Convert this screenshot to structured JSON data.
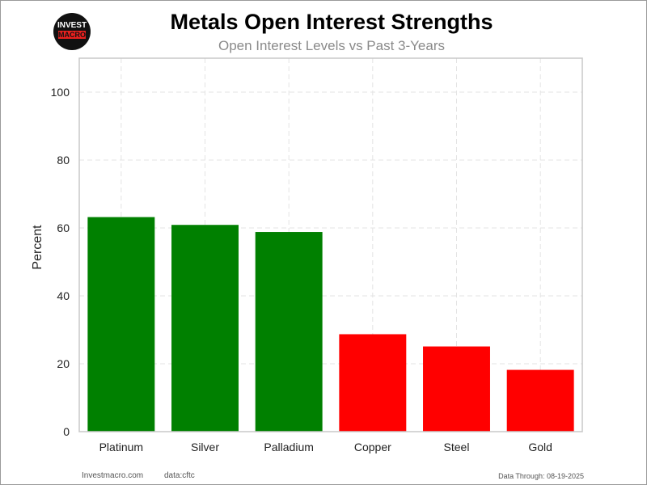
{
  "logo": {
    "line1": "INVEST",
    "line2": "MACRO"
  },
  "chart_data": {
    "type": "bar",
    "title": "Metals Open Interest Strengths",
    "subtitle": "Open Interest Levels vs Past 3-Years",
    "xlabel": "",
    "ylabel": "Percent",
    "categories": [
      "Platinum",
      "Silver",
      "Palladium",
      "Copper",
      "Steel",
      "Gold"
    ],
    "values": [
      63.2,
      60.9,
      58.8,
      28.7,
      25.1,
      18.2
    ],
    "colors": [
      "#008000",
      "#008000",
      "#008000",
      "#ff0000",
      "#ff0000",
      "#ff0000"
    ],
    "ylim": [
      0,
      110
    ],
    "yticks": [
      0,
      20,
      40,
      60,
      80,
      100
    ],
    "grid": true
  },
  "footer": {
    "site": "Investmacro.com",
    "source": "data:cftc",
    "date": "Data Through: 08-19-2025"
  }
}
